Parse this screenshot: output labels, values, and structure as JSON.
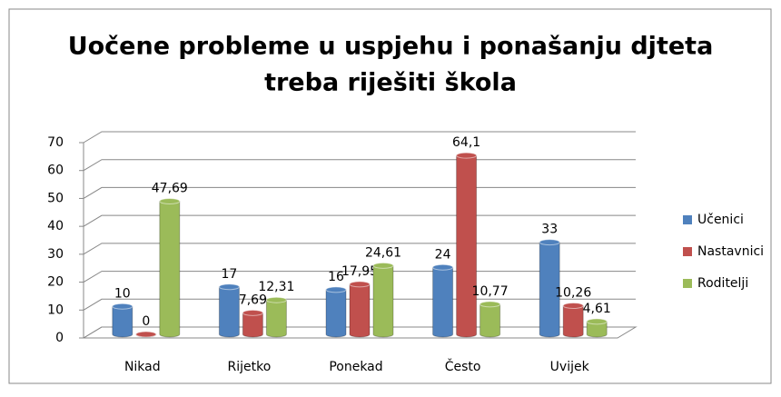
{
  "chart_data": {
    "type": "bar",
    "title": [
      "Uočene probleme u uspjehu i ponašanju djteta",
      "treba riješiti škola"
    ],
    "categories": [
      "Nikad",
      "Rijetko",
      "Ponekad",
      "Često",
      "Uvijek"
    ],
    "series": [
      {
        "name": "Učenici",
        "color": "#4f81bd",
        "values": [
          10,
          17,
          16,
          24,
          33
        ],
        "value_labels": [
          "10",
          "17",
          "16",
          "24",
          "33"
        ]
      },
      {
        "name": "Nastavnici",
        "color": "#c0504d",
        "values": [
          0,
          7.69,
          17.95,
          64.1,
          10.26
        ],
        "value_labels": [
          "0",
          "7,69",
          "17,95",
          "64,1",
          "10,26"
        ]
      },
      {
        "name": "Roditelji",
        "color": "#9bbb59",
        "values": [
          47.69,
          12.31,
          24.61,
          10.77,
          4.61
        ],
        "value_labels": [
          "47,69",
          "12,31",
          "24,61",
          "10,77",
          "4,61"
        ]
      }
    ],
    "ylim": [
      0,
      70
    ],
    "yticks": [
      0,
      10,
      20,
      30,
      40,
      50,
      60,
      70
    ],
    "grid": true,
    "legend": "right"
  }
}
